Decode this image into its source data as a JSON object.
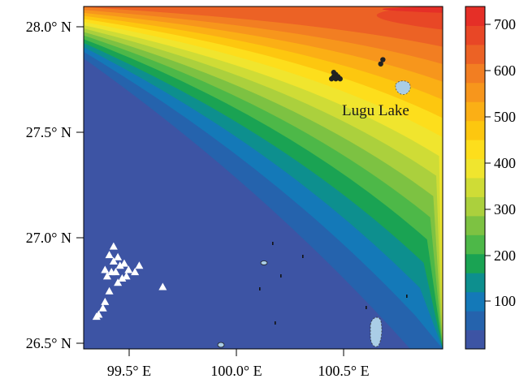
{
  "map": {
    "lat_ticks": [
      "28.0° N",
      "27.5° N",
      "27.0° N",
      "26.5° N"
    ],
    "lon_ticks": [
      "99.5° E",
      "100.0° E",
      "100.5° E"
    ],
    "lat_range": [
      26.47,
      28.08
    ],
    "lon_range": [
      99.27,
      100.95
    ],
    "annotation": "Lugu Lake",
    "colorbar": {
      "ticks": [
        "100",
        "200",
        "300",
        "400",
        "500",
        "600",
        "700"
      ],
      "range": [
        0,
        740
      ],
      "colors": [
        "#3d54a4",
        "#2563ad",
        "#1479b8",
        "#0d8f8e",
        "#1aa353",
        "#4db848",
        "#7dc242",
        "#abd03d",
        "#cfdc36",
        "#f0e52e",
        "#fdde1c",
        "#fdc70f",
        "#fbaf15",
        "#f7961c",
        "#f27e22",
        "#ec6225",
        "#e84726",
        "#e52f27"
      ]
    },
    "colors": {
      "triangle_markers": "#ffffff",
      "dot_markers": "#222222",
      "lake_fill": "#aacde6"
    },
    "markers": {
      "triangles": [
        [
          99.33,
          26.62
        ],
        [
          99.34,
          26.63
        ],
        [
          99.36,
          26.66
        ],
        [
          99.37,
          26.69
        ],
        [
          99.39,
          26.74
        ],
        [
          99.38,
          26.81
        ],
        [
          99.4,
          26.83
        ],
        [
          99.37,
          26.84
        ],
        [
          99.42,
          26.83
        ],
        [
          99.41,
          26.88
        ],
        [
          99.44,
          26.86
        ],
        [
          99.46,
          26.87
        ],
        [
          99.43,
          26.9
        ],
        [
          99.39,
          26.91
        ],
        [
          99.41,
          26.95
        ],
        [
          99.48,
          26.84
        ],
        [
          99.45,
          26.8
        ],
        [
          99.43,
          26.78
        ],
        [
          99.47,
          26.81
        ],
        [
          99.51,
          26.83
        ],
        [
          99.53,
          26.86
        ],
        [
          99.64,
          26.76
        ]
      ],
      "dots": [
        [
          100.43,
          27.74
        ],
        [
          100.44,
          27.75
        ],
        [
          100.45,
          27.76
        ],
        [
          100.45,
          27.74
        ],
        [
          100.46,
          27.75
        ],
        [
          100.47,
          27.74
        ],
        [
          100.44,
          27.77
        ],
        [
          100.66,
          27.81
        ],
        [
          100.67,
          27.83
        ]
      ]
    }
  }
}
